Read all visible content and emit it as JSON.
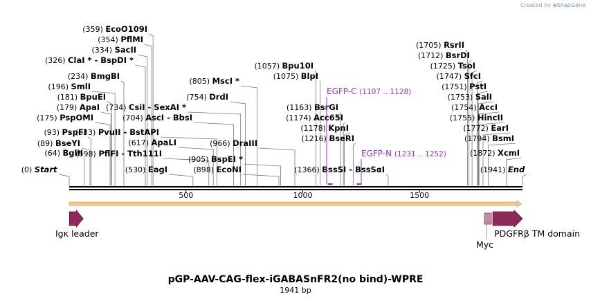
{
  "credit": {
    "prefix": "Created by",
    "brand": "SnapGene"
  },
  "title": "pGP-AAV-CAG-flex-iGABASnFR2(no bind)-WPRE",
  "subtitle": "1941 bp",
  "sequence_length": 1941,
  "ticks": [
    {
      "pos": 500,
      "label": "500"
    },
    {
      "pos": 1000,
      "label": "1000"
    },
    {
      "pos": 1500,
      "label": "1500"
    }
  ],
  "sites": [
    {
      "pos": 0,
      "name": "Start",
      "coord": "(0)",
      "italic": true
    },
    {
      "pos": 64,
      "name": "BglII",
      "coord": "(64)"
    },
    {
      "pos": 89,
      "name": "BseYI",
      "coord": "(89)"
    },
    {
      "pos": 93,
      "name": "PspFI",
      "coord": "(93)"
    },
    {
      "pos": 175,
      "name": "PspOMI",
      "coord": "(175)"
    },
    {
      "pos": 179,
      "name": "ApaI",
      "coord": "(179)"
    },
    {
      "pos": 181,
      "name": "BpuEI",
      "coord": "(181)"
    },
    {
      "pos": 196,
      "name": "SmlI",
      "coord": "(196)"
    },
    {
      "pos": 234,
      "name": "BmgBI",
      "coord": "(234)"
    },
    {
      "pos": 326,
      "name": "ClaI * - BspDI *",
      "coord": "(326)"
    },
    {
      "pos": 334,
      "name": "SacII",
      "coord": "(334)"
    },
    {
      "pos": 354,
      "name": "PflMI",
      "coord": "(354)"
    },
    {
      "pos": 359,
      "name": "EcoO109I",
      "coord": "(359)"
    },
    {
      "pos": 530,
      "name": "EagI",
      "coord": "(530)"
    },
    {
      "pos": 598,
      "name": "PflFI - Tth111I",
      "coord": "(598)"
    },
    {
      "pos": 617,
      "name": "ApaLI",
      "coord": "(617)"
    },
    {
      "pos": 633,
      "name": "PvuII - BstAPI",
      "coord": "(633)"
    },
    {
      "pos": 704,
      "name": "AscI - BbsI",
      "coord": "(704)"
    },
    {
      "pos": 734,
      "name": "CsiI - SexAI *",
      "coord": "(734)"
    },
    {
      "pos": 754,
      "name": "DrdI",
      "coord": "(754)"
    },
    {
      "pos": 805,
      "name": "MscI *",
      "coord": "(805)"
    },
    {
      "pos": 898,
      "name": "EcoNI",
      "coord": "(898)"
    },
    {
      "pos": 905,
      "name": "BspEI *",
      "coord": "(905)"
    },
    {
      "pos": 966,
      "name": "DraIII",
      "coord": "(966)"
    },
    {
      "pos": 1057,
      "name": "Bpu10I",
      "coord": "(1057)"
    },
    {
      "pos": 1075,
      "name": "BlpI",
      "coord": "(1075)"
    },
    {
      "pos": 1163,
      "name": "BsrGI",
      "coord": "(1163)"
    },
    {
      "pos": 1174,
      "name": "Acc65I",
      "coord": "(1174)"
    },
    {
      "pos": 1178,
      "name": "KpnI",
      "coord": "(1178)"
    },
    {
      "pos": 1216,
      "name": "BseRI",
      "coord": "(1216)"
    },
    {
      "pos": 1366,
      "name": "BssSI - BssSαI",
      "coord": "(1366)"
    },
    {
      "pos": 1705,
      "name": "RsrII",
      "coord": "(1705)"
    },
    {
      "pos": 1712,
      "name": "BsrDI",
      "coord": "(1712)"
    },
    {
      "pos": 1725,
      "name": "TsoI",
      "coord": "(1725)"
    },
    {
      "pos": 1747,
      "name": "SfcI",
      "coord": "(1747)"
    },
    {
      "pos": 1751,
      "name": "PstI",
      "coord": "(1751)"
    },
    {
      "pos": 1753,
      "name": "SalI",
      "coord": "(1753)"
    },
    {
      "pos": 1754,
      "name": "AccI",
      "coord": "(1754)"
    },
    {
      "pos": 1755,
      "name": "HincII",
      "coord": "(1755)"
    },
    {
      "pos": 1772,
      "name": "EarI",
      "coord": "(1772)"
    },
    {
      "pos": 1794,
      "name": "BsmI",
      "coord": "(1794)"
    },
    {
      "pos": 1872,
      "name": "XcmI",
      "coord": "(1872)"
    },
    {
      "pos": 1941,
      "name": "End",
      "coord": "(1941)",
      "italic": true
    }
  ],
  "primers": [
    {
      "name": "EGFP-C",
      "coord": "(1107 .. 1128)",
      "start": 1107,
      "end": 1128
    },
    {
      "name": "EGFP-N",
      "coord": "(1231 .. 1252)",
      "start": 1231,
      "end": 1252
    }
  ],
  "features": [
    {
      "name": "Igκ leader",
      "start": 1,
      "end": 60,
      "type": "arrow",
      "color": "#8e2a5a"
    },
    {
      "name": "Myc",
      "start": 1778,
      "end": 1808,
      "type": "box",
      "color": "#c48aa3"
    },
    {
      "name": "PDGFRβ TM domain",
      "start": 1814,
      "end": 1941,
      "type": "arrow",
      "color": "#8e2a5a"
    }
  ],
  "colors": {
    "backbone": "#000000",
    "orf": "#f3c989",
    "primer": "#9a2fd6",
    "feature": "#8e2a5a",
    "myc": "#c48aa3",
    "leader_line": "#777777"
  }
}
